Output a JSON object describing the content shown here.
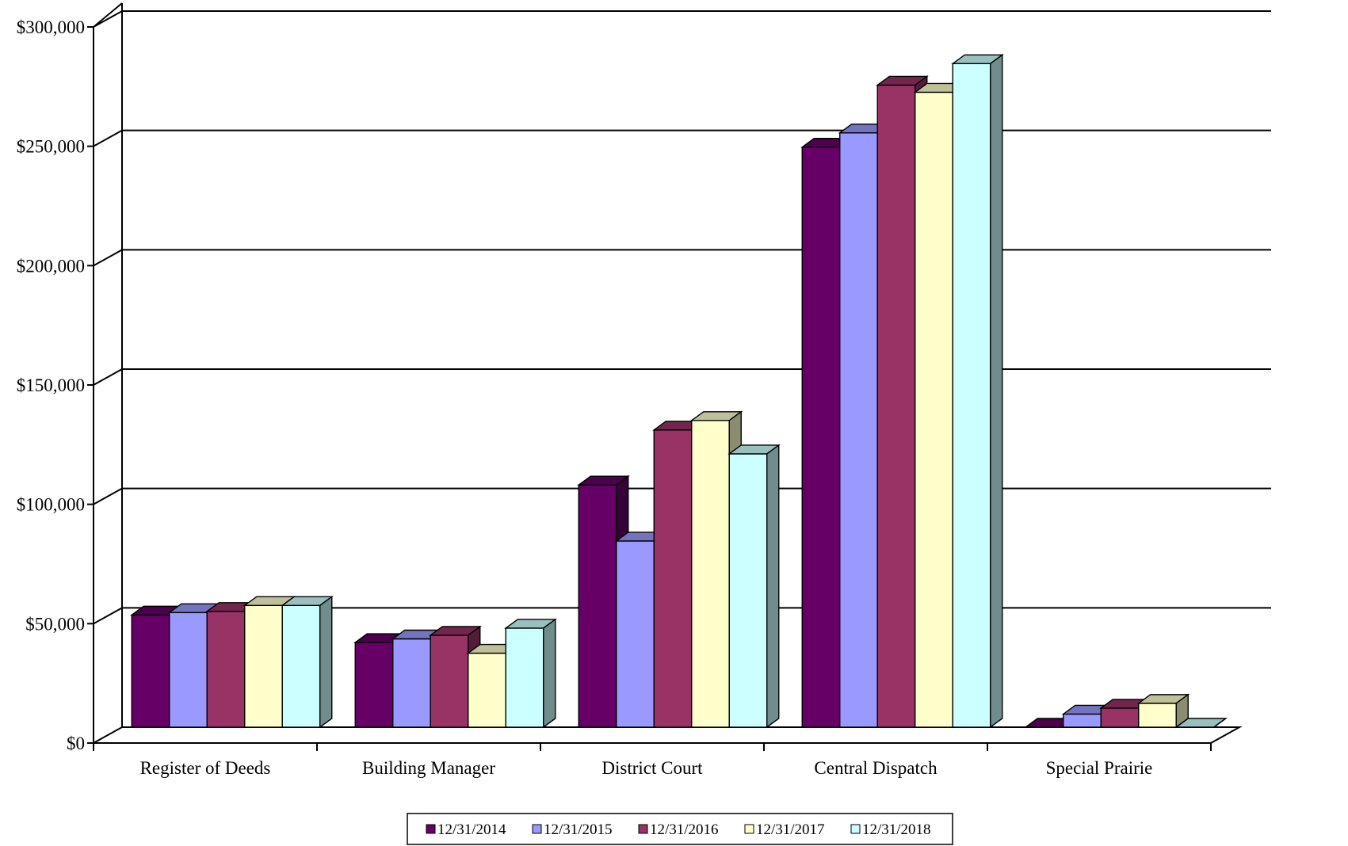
{
  "chart_data": {
    "type": "bar",
    "title": "",
    "xlabel": "",
    "ylabel": "",
    "ylim": [
      0,
      300000
    ],
    "y_ticks": [
      0,
      50000,
      100000,
      150000,
      200000,
      250000,
      300000
    ],
    "y_tick_labels": [
      "$0",
      "$50,000",
      "$100,000",
      "$150,000",
      "$200,000",
      "$250,000",
      "$300,000"
    ],
    "grid": true,
    "style": "3d-clustered-column",
    "legend_position": "bottom",
    "categories": [
      "Register of Deeds",
      "Building Manager",
      "District Court",
      "Central Dispatch",
      "Special Prairie"
    ],
    "series": [
      {
        "name": "12/31/2014",
        "color": "#660066",
        "values": [
          47000,
          35500,
          101500,
          243000,
          0
        ]
      },
      {
        "name": "12/31/2015",
        "color": "#9999ff",
        "values": [
          48000,
          37000,
          78000,
          249000,
          5500
        ]
      },
      {
        "name": "12/31/2016",
        "color": "#993366",
        "values": [
          48500,
          38500,
          124500,
          269000,
          8000
        ]
      },
      {
        "name": "12/31/2017",
        "color": "#ffffcc",
        "values": [
          51000,
          31000,
          128500,
          266000,
          10000
        ]
      },
      {
        "name": "12/31/2018",
        "color": "#ccffff",
        "values": [
          51000,
          41500,
          114500,
          278000,
          0
        ]
      }
    ]
  }
}
